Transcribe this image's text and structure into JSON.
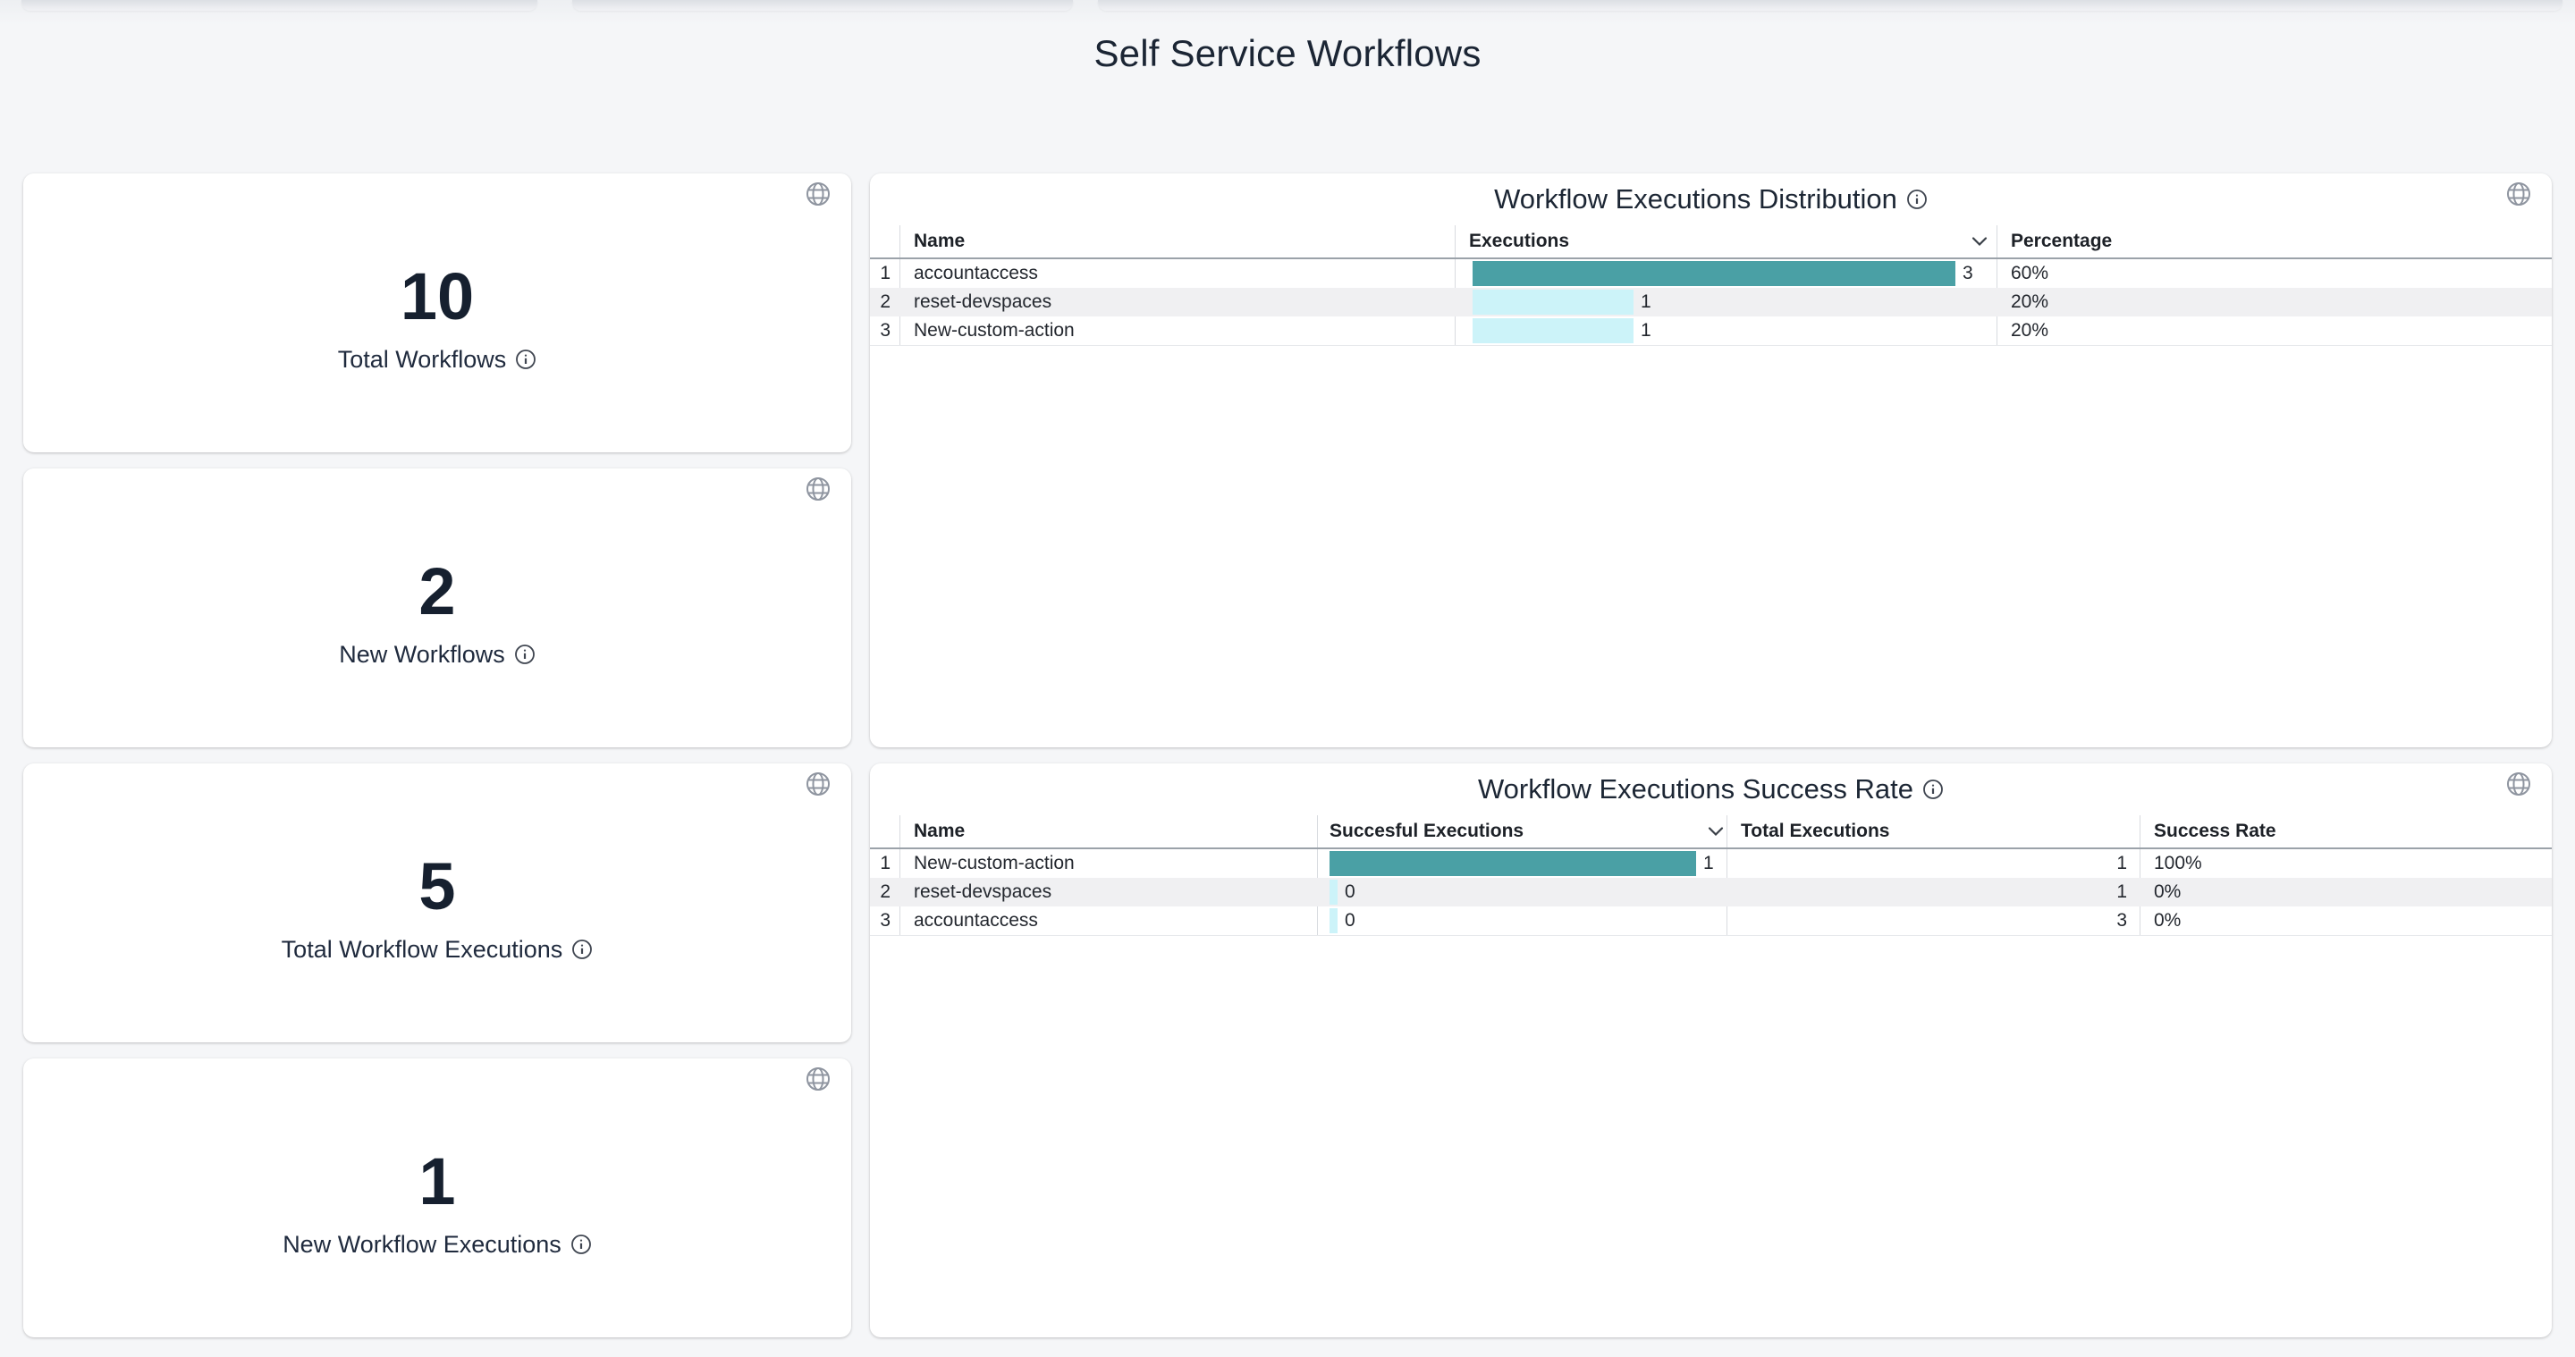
{
  "page": {
    "title": "Self Service Workflows"
  },
  "colors": {
    "teal_bar": "#4AA0A5",
    "cyan_bar": "#CCF3F9",
    "row_stripe": "#F0F0F2",
    "page_bg": "#F5F6F8",
    "card_bg": "#FFFFFF"
  },
  "stat_cards": [
    {
      "value": "10",
      "label": "Total Workflows"
    },
    {
      "value": "2",
      "label": "New Workflows"
    },
    {
      "value": "5",
      "label": "Total Workflow Executions"
    },
    {
      "value": "1",
      "label": "New Workflow Executions"
    }
  ],
  "distribution_table": {
    "title": "Workflow Executions Distribution",
    "columns": [
      "Name",
      "Executions",
      "Percentage"
    ],
    "sorted_column": "Executions",
    "rows": [
      {
        "index": "1",
        "name": "accountaccess",
        "executions": 3,
        "percentage": "60%"
      },
      {
        "index": "2",
        "name": "reset-devspaces",
        "executions": 1,
        "percentage": "20%"
      },
      {
        "index": "3",
        "name": "New-custom-action",
        "executions": 1,
        "percentage": "20%"
      }
    ]
  },
  "success_table": {
    "title": "Workflow Executions Success Rate",
    "columns": [
      "Name",
      "Succesful Executions",
      "Total Executions",
      "Success Rate"
    ],
    "sorted_column": "Succesful Executions",
    "rows": [
      {
        "index": "1",
        "name": "New-custom-action",
        "successful": 1,
        "total": 1,
        "rate": "100%"
      },
      {
        "index": "2",
        "name": "reset-devspaces",
        "successful": 0,
        "total": 1,
        "rate": "0%"
      },
      {
        "index": "3",
        "name": "accountaccess",
        "successful": 0,
        "total": 3,
        "rate": "0%"
      }
    ]
  },
  "chart_data": [
    {
      "type": "bar",
      "title": "Workflow Executions Distribution",
      "categories": [
        "accountaccess",
        "reset-devspaces",
        "New-custom-action"
      ],
      "values": [
        3,
        1,
        1
      ],
      "percentages": [
        60,
        20,
        20
      ],
      "orientation": "horizontal"
    },
    {
      "type": "bar",
      "title": "Workflow Executions Success Rate",
      "categories": [
        "New-custom-action",
        "reset-devspaces",
        "accountaccess"
      ],
      "series": [
        {
          "name": "Succesful Executions",
          "values": [
            1,
            0,
            0
          ]
        },
        {
          "name": "Total Executions",
          "values": [
            1,
            1,
            3
          ]
        },
        {
          "name": "Success Rate",
          "values": [
            "100%",
            "0%",
            "0%"
          ]
        }
      ],
      "orientation": "horizontal"
    }
  ]
}
